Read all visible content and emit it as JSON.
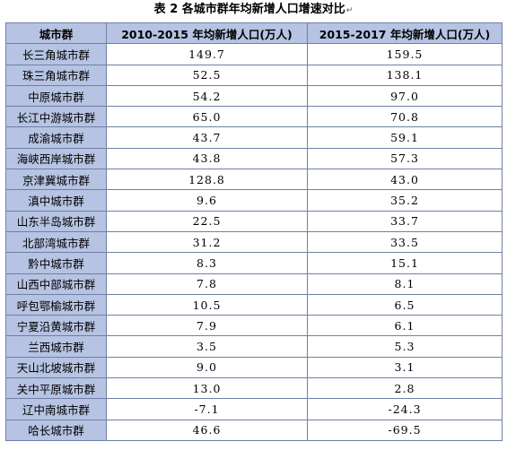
{
  "caption": {
    "title": "表 2  各城市群年均新增人口增速对比",
    "mark": "↵"
  },
  "table": {
    "headers": [
      "城市群",
      "2010-2015 年均新增人口(万人)",
      "2015-2017 年均新增人口(万人)"
    ],
    "rows": [
      [
        "长三角城市群",
        "149.7",
        "159.5"
      ],
      [
        "珠三角城市群",
        "52.5",
        "138.1"
      ],
      [
        "中原城市群",
        "54.2",
        "97.0"
      ],
      [
        "长江中游城市群",
        "65.0",
        "70.8"
      ],
      [
        "成渝城市群",
        "43.7",
        "59.1"
      ],
      [
        "海峡西岸城市群",
        "43.8",
        "57.3"
      ],
      [
        "京津冀城市群",
        "128.8",
        "43.0"
      ],
      [
        "滇中城市群",
        "9.6",
        "35.2"
      ],
      [
        "山东半岛城市群",
        "22.5",
        "33.7"
      ],
      [
        "北部湾城市群",
        "31.2",
        "33.5"
      ],
      [
        "黔中城市群",
        "8.3",
        "15.1"
      ],
      [
        "山西中部城市群",
        "7.8",
        "8.1"
      ],
      [
        "呼包鄂榆城市群",
        "10.5",
        "6.5"
      ],
      [
        "宁夏沿黄城市群",
        "7.9",
        "6.1"
      ],
      [
        "兰西城市群",
        "3.5",
        "5.3"
      ],
      [
        "天山北坡城市群",
        "9.0",
        "3.1"
      ],
      [
        "关中平原城市群",
        "13.0",
        "2.8"
      ],
      [
        "辽中南城市群",
        "-7.1",
        "-24.3"
      ],
      [
        "哈长城市群",
        "46.6",
        "-69.5"
      ]
    ]
  },
  "colors": {
    "header_fill": "#b6c3e2",
    "border": "#6f7fa6"
  }
}
